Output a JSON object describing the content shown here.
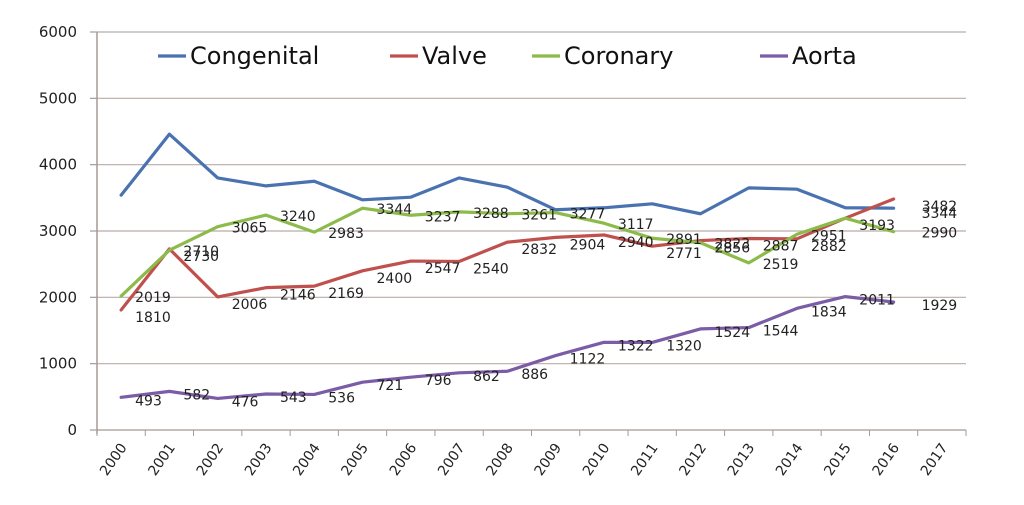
{
  "chart_data": {
    "type": "line",
    "title": "",
    "xlabel": "",
    "ylabel": "",
    "ylim": [
      0,
      6000
    ],
    "yticks": [
      0,
      1000,
      2000,
      3000,
      4000,
      5000,
      6000
    ],
    "grid": true,
    "legend_position": "top",
    "categories": [
      "2000",
      "2001",
      "2002",
      "2003",
      "2004",
      "2005",
      "2006",
      "2007",
      "2008",
      "2009",
      "2010",
      "2011",
      "2012",
      "2013",
      "2014",
      "2015",
      "2016",
      "2017"
    ],
    "series": [
      {
        "name": "Congenital",
        "color": "#4a72b0",
        "values": [
          3540,
          4460,
          3800,
          3680,
          3750,
          3470,
          3510,
          3800,
          3660,
          3320,
          3350,
          3410,
          3260,
          3650,
          3630,
          3350,
          3344,
          null
        ],
        "labels": [
          null,
          null,
          null,
          null,
          null,
          null,
          null,
          null,
          null,
          null,
          null,
          null,
          null,
          null,
          null,
          null,
          "3344",
          null
        ]
      },
      {
        "name": "Valve",
        "color": "#c0504d",
        "values": [
          1810,
          2730,
          2006,
          2146,
          2169,
          2400,
          2547,
          2540,
          2832,
          2904,
          2940,
          2771,
          2856,
          2887,
          2882,
          3193,
          3482,
          null
        ],
        "labels": [
          "1810",
          "2730",
          "2006",
          "2146",
          "2169",
          "2400",
          "2547",
          "2540",
          "2832",
          "2904",
          "2940",
          "2771",
          "2856",
          "2887",
          "2882",
          "3193",
          "3482",
          null
        ]
      },
      {
        "name": "Coronary",
        "color": "#8cbb4a",
        "values": [
          2019,
          2710,
          3065,
          3240,
          2983,
          3344,
          3237,
          3288,
          3261,
          3277,
          3117,
          2891,
          2823,
          2519,
          2951,
          3193,
          2990,
          null
        ],
        "labels": [
          "2019",
          "2710",
          "3065",
          "3240",
          "2983",
          "3344",
          "3237",
          "3288",
          "3261",
          "3277",
          "3117",
          "2891",
          "2823",
          "2519",
          "2951",
          null,
          "2990",
          null
        ]
      },
      {
        "name": "Aorta",
        "color": "#7b5ca6",
        "values": [
          493,
          582,
          476,
          543,
          536,
          721,
          796,
          862,
          886,
          1122,
          1322,
          1320,
          1524,
          1544,
          1834,
          2011,
          1929,
          null
        ],
        "labels": [
          "493",
          "582",
          "476",
          "543",
          "536",
          "721",
          "796",
          "862",
          "886",
          "1122",
          "1322",
          "1320",
          "1524",
          "1544",
          "1834",
          "2011",
          "1929",
          null
        ]
      }
    ]
  },
  "colors": {
    "gridline": "#b8aca6",
    "axis": "#a59a95",
    "text": "#222222"
  }
}
